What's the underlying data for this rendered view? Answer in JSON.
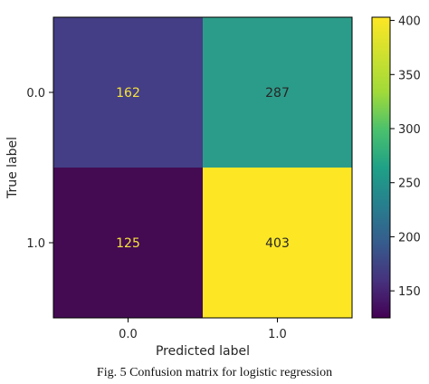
{
  "chart_data": {
    "type": "heatmap",
    "xlabel": "Predicted label",
    "ylabel": "True label",
    "x_categories": [
      "0.0",
      "1.0"
    ],
    "y_categories": [
      "0.0",
      "1.0"
    ],
    "values": [
      [
        162,
        287
      ],
      [
        125,
        403
      ]
    ],
    "colormap": "viridis",
    "colorbar": {
      "range": [
        125,
        403
      ],
      "ticks": [
        150,
        200,
        250,
        300,
        350,
        400
      ]
    },
    "cell_colors": {
      "162": "#433e85",
      "287": "#2c9c8a",
      "125": "#440b53",
      "403": "#fde725"
    },
    "text_colors": {
      "light_bg": "#262626",
      "dark_bg": "#f7e23c"
    }
  },
  "caption": "Fig. 5  Confusion matrix for logistic regression"
}
